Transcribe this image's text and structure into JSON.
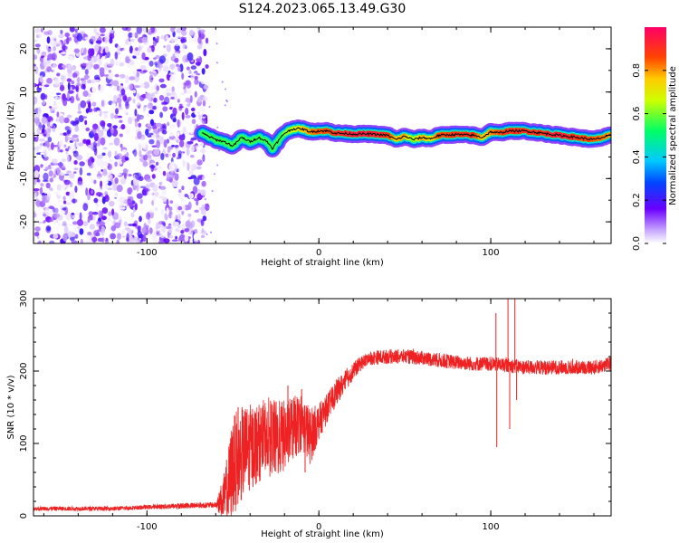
{
  "title": "S124.2023.065.13.49.G30",
  "colors": {
    "snr_line": "#ee2222",
    "trace_core": "#000000"
  },
  "chart_data": [
    {
      "type": "heatmap",
      "xlabel": "Height of straight line (km)",
      "ylabel": "Frequency (Hz)",
      "xlim": [
        -166,
        170
      ],
      "ylim": [
        -25,
        25
      ],
      "x_ticks": [
        -100,
        0,
        100
      ],
      "y_ticks": [
        -20,
        -10,
        0,
        10,
        20
      ],
      "x_tick_labels": [
        "-100",
        "0",
        "100"
      ],
      "y_tick_labels": [
        "-20",
        "-10",
        "0",
        "10",
        "20"
      ],
      "colorbar": {
        "label": "Normalized spectral amplitude",
        "range": [
          0,
          1
        ],
        "ticks": [
          0.0,
          0.2,
          0.4,
          0.6,
          0.8
        ],
        "tick_labels": [
          "0.0",
          "0.2",
          "0.4",
          "0.6",
          "0.8"
        ]
      },
      "noise_region_x": [
        -166,
        -68
      ],
      "trace_start_x": -68,
      "trace": {
        "x": [
          -68,
          -60,
          -55,
          -50,
          -45,
          -40,
          -35,
          -30,
          -27,
          -25,
          -20,
          -15,
          -10,
          -5,
          0,
          5,
          10,
          20,
          30,
          40,
          45,
          50,
          55,
          60,
          65,
          70,
          80,
          90,
          95,
          100,
          105,
          110,
          120,
          130,
          140,
          150,
          160,
          170
        ],
        "y": [
          0.5,
          -1.0,
          -1.5,
          -2.5,
          -0.5,
          -1.5,
          -0.5,
          -1.5,
          -3.0,
          -2.0,
          0.5,
          1.5,
          1.5,
          0.8,
          1.0,
          1.0,
          0.5,
          0.3,
          0.3,
          0.0,
          -1.0,
          -0.2,
          -1.0,
          -0.5,
          -0.8,
          0.0,
          0.2,
          0.0,
          -0.5,
          0.8,
          0.5,
          1.0,
          1.0,
          0.5,
          0.0,
          -0.5,
          -1.0,
          0.0
        ],
        "amplitude": [
          0.3,
          0.4,
          0.45,
          0.5,
          0.55,
          0.55,
          0.5,
          0.5,
          0.55,
          0.55,
          0.6,
          0.65,
          0.75,
          0.8,
          0.85,
          0.85,
          0.9,
          0.95,
          0.95,
          0.9,
          0.75,
          0.8,
          0.6,
          0.8,
          0.7,
          0.85,
          0.9,
          0.9,
          0.75,
          0.8,
          0.85,
          0.9,
          0.9,
          0.9,
          0.95,
          0.9,
          0.85,
          0.8
        ]
      }
    },
    {
      "type": "line",
      "xlabel": "Height of straight line (km)",
      "ylabel": "SNR (10 * v/v)",
      "xlim": [
        -166,
        170
      ],
      "ylim": [
        0,
        300
      ],
      "x_ticks": [
        -100,
        0,
        100
      ],
      "y_ticks": [
        0,
        100,
        200,
        300
      ],
      "x_tick_labels": [
        "-100",
        "0",
        "100"
      ],
      "y_tick_labels": [
        "0",
        "100",
        "200",
        "300"
      ],
      "series": [
        {
          "x": [
            -166,
            -140,
            -120,
            -100,
            -80,
            -60,
            -55,
            -52,
            -50,
            -45,
            -40,
            -35,
            -30,
            -25,
            -20,
            -15,
            -10,
            -5,
            0,
            5,
            10,
            15,
            20,
            25,
            30,
            40,
            50,
            60,
            70,
            80,
            90,
            100,
            110,
            120,
            130,
            140,
            150,
            160,
            170
          ],
          "y": [
            10,
            10,
            10,
            12,
            14,
            15,
            25,
            45,
            70,
            85,
            95,
            100,
            115,
            105,
            110,
            120,
            130,
            110,
            130,
            150,
            170,
            185,
            200,
            212,
            218,
            220,
            220,
            218,
            215,
            212,
            210,
            210,
            208,
            205,
            205,
            205,
            205,
            205,
            210
          ],
          "noise": [
            3,
            3,
            3,
            3,
            4,
            4,
            35,
            60,
            70,
            65,
            60,
            55,
            50,
            55,
            50,
            45,
            40,
            40,
            25,
            20,
            18,
            15,
            12,
            10,
            10,
            10,
            10,
            10,
            10,
            10,
            10,
            10,
            10,
            10,
            10,
            10,
            10,
            10,
            10
          ],
          "spikes": [
            {
              "x": -47,
              "y": 150
            },
            {
              "x": -41,
              "y": 100
            },
            {
              "x": -28,
              "y": 120
            },
            {
              "x": -18,
              "y": 180
            },
            {
              "x": -10,
              "y": 175
            },
            {
              "x": -8,
              "y": 60
            },
            {
              "x": 103,
              "y": 280
            },
            {
              "x": 103.5,
              "y": 95
            },
            {
              "x": 110,
              "y": 300
            },
            {
              "x": 111,
              "y": 120
            },
            {
              "x": 114,
              "y": 300
            },
            {
              "x": 115,
              "y": 160
            }
          ]
        }
      ]
    }
  ]
}
